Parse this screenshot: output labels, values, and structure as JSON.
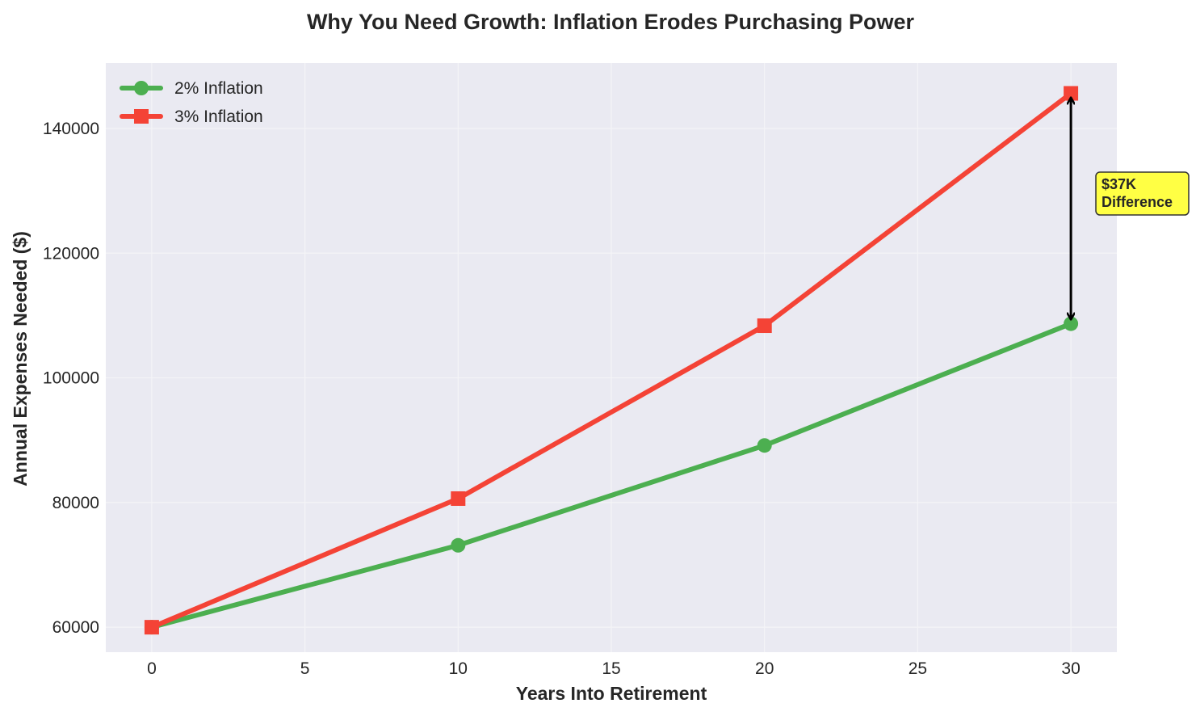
{
  "chart_data": {
    "type": "line",
    "title": "Why You Need Growth: Inflation Erodes Purchasing Power",
    "xlabel": "Years Into Retirement",
    "ylabel": "Annual Expenses Needed ($)",
    "x": [
      0,
      10,
      20,
      30
    ],
    "xlim": [
      -1.5,
      31.5
    ],
    "ylim": [
      56000,
      150500
    ],
    "xticks": [
      0,
      5,
      10,
      15,
      20,
      25,
      30
    ],
    "yticks": [
      60000,
      80000,
      100000,
      120000,
      140000
    ],
    "grid": true,
    "legend_position": "top-left",
    "series": [
      {
        "name": "2% Inflation",
        "values": [
          60000,
          73140,
          89157,
          108682
        ],
        "color": "#4caf50",
        "marker": "circle"
      },
      {
        "name": "3% Inflation",
        "values": [
          60000,
          80635,
          108367,
          145636
        ],
        "color": "#f44336",
        "marker": "square"
      }
    ],
    "annotation": {
      "line1": "$37K",
      "line2": "Difference",
      "x": 30,
      "y_from": 108682,
      "y_to": 145636,
      "box_color": "#ffff44"
    },
    "colors": {
      "plot_background": "#eaeaf2",
      "grid": "#f4f4f7",
      "text": "#262626"
    }
  }
}
